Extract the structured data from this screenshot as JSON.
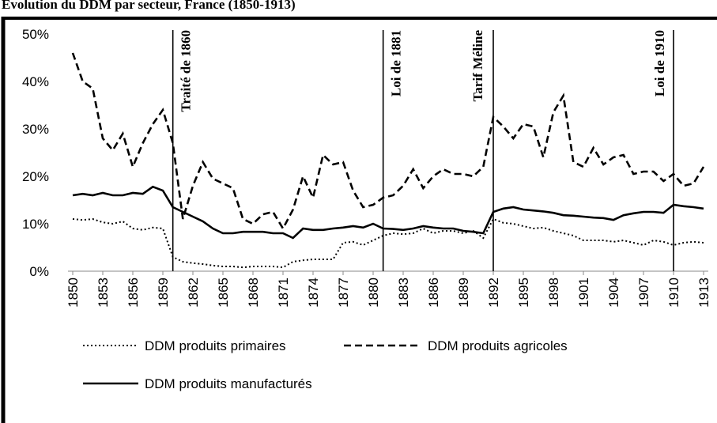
{
  "chart_data": {
    "type": "line",
    "title": "Évolution du DDM par secteur, France (1850-1913)",
    "x": [
      1850,
      1851,
      1852,
      1853,
      1854,
      1855,
      1856,
      1857,
      1858,
      1859,
      1860,
      1861,
      1862,
      1863,
      1864,
      1865,
      1866,
      1867,
      1868,
      1869,
      1870,
      1871,
      1872,
      1873,
      1874,
      1875,
      1876,
      1877,
      1878,
      1879,
      1880,
      1881,
      1882,
      1883,
      1884,
      1885,
      1886,
      1887,
      1888,
      1889,
      1890,
      1891,
      1892,
      1893,
      1894,
      1895,
      1896,
      1897,
      1898,
      1899,
      1900,
      1901,
      1902,
      1903,
      1904,
      1905,
      1906,
      1907,
      1908,
      1909,
      1910,
      1911,
      1912,
      1913
    ],
    "xlim": [
      1850,
      1913
    ],
    "xticks": [
      1850,
      1853,
      1856,
      1859,
      1862,
      1865,
      1868,
      1871,
      1874,
      1877,
      1880,
      1883,
      1886,
      1889,
      1892,
      1895,
      1898,
      1901,
      1904,
      1907,
      1910,
      1913
    ],
    "ylim": [
      0,
      50
    ],
    "yticks": [
      {
        "value": 0,
        "label": "0%"
      },
      {
        "value": 10,
        "label": "10%"
      },
      {
        "value": 20,
        "label": "20%"
      },
      {
        "value": 30,
        "label": "30%"
      },
      {
        "value": 40,
        "label": "40%"
      },
      {
        "value": 50,
        "label": "50%"
      }
    ],
    "series": [
      {
        "name": "DDM produits primaires",
        "color": "#000000",
        "style": "dotted",
        "values": [
          11,
          10.8,
          11,
          10.3,
          10,
          10.5,
          9,
          8.7,
          9.2,
          9,
          3,
          2,
          1.7,
          1.5,
          1.2,
          1,
          1,
          0.8,
          1,
          1,
          1,
          0.8,
          2,
          2.3,
          2.5,
          2.5,
          2.5,
          6,
          6.2,
          5.5,
          6.5,
          7.5,
          8,
          7.8,
          8,
          9,
          8,
          8.5,
          8.5,
          8,
          8.5,
          7,
          11,
          10.2,
          10,
          9.5,
          9,
          9.2,
          8.5,
          8,
          7.5,
          6.5,
          6.5,
          6.5,
          6.2,
          6.5,
          6,
          5.5,
          6.5,
          6.2,
          5.5,
          6,
          6.2,
          6
        ]
      },
      {
        "name": "DDM produits agricoles",
        "color": "#000000",
        "style": "dashed",
        "values": [
          46,
          40,
          38.5,
          28,
          25.5,
          29,
          22,
          27,
          31,
          34,
          27,
          11,
          18,
          23,
          19.5,
          18.5,
          17.5,
          11,
          10,
          12,
          12.5,
          9,
          13,
          20,
          15.5,
          24.5,
          22.5,
          23,
          17,
          13.5,
          14,
          15.5,
          16,
          18,
          21.5,
          17.5,
          20,
          21.5,
          20.5,
          20.5,
          20,
          22,
          32.5,
          30.5,
          28,
          31,
          30.5,
          24,
          33.5,
          37,
          23,
          22,
          26,
          22.5,
          24,
          24.5,
          20.5,
          21,
          21,
          19,
          20.5,
          18,
          18.5,
          22
        ]
      },
      {
        "name": "DDM produits manufacturés",
        "color": "#000000",
        "style": "solid",
        "values": [
          16,
          16.3,
          16,
          16.5,
          16,
          16,
          16.5,
          16.3,
          17.8,
          17,
          13.5,
          12.5,
          11.5,
          10.5,
          9,
          8,
          8,
          8.3,
          8.3,
          8.3,
          8,
          8,
          7,
          9,
          8.7,
          8.7,
          9,
          9.2,
          9.5,
          9.2,
          10,
          9,
          8.9,
          8.7,
          9,
          9.5,
          9.2,
          9,
          9,
          8.5,
          8.3,
          8,
          12.5,
          13.2,
          13.5,
          13,
          12.8,
          12.6,
          12.3,
          11.8,
          11.7,
          11.5,
          11.3,
          11.2,
          10.8,
          11.8,
          12.2,
          12.5,
          12.5,
          12.3,
          14,
          13.7,
          13.5,
          13.2
        ]
      }
    ],
    "annotations": [
      {
        "x": 1860,
        "text": "Traité de 1860"
      },
      {
        "x": 1881,
        "text": "Loi de 1881"
      },
      {
        "x": 1892,
        "text": "Tarif Méline"
      },
      {
        "x": 1910,
        "text": "Loi de 1910"
      }
    ]
  }
}
